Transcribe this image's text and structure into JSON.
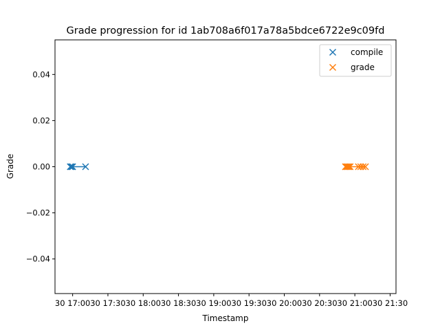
{
  "chart_data": {
    "type": "scatter",
    "title": "Grade progression for id 1ab708a6f017a78a5bdce6722e9c09fd",
    "xlabel": "Timestamp",
    "ylabel": "Grade",
    "xlim": [
      "30 16:45",
      "30 21:35"
    ],
    "ylim": [
      -0.055,
      0.055
    ],
    "x_ticks": [
      "30 17:00",
      "30 17:30",
      "30 18:00",
      "30 18:30",
      "30 19:00",
      "30 19:30",
      "30 20:00",
      "30 20:30",
      "30 21:00",
      "30 21:30"
    ],
    "y_ticks": [
      "0.04",
      "0.02",
      "0.00",
      "−0.02",
      "−0.04"
    ],
    "legend_position": "top-right",
    "grid": false,
    "series": [
      {
        "name": "compile",
        "color": "#1f77b4",
        "marker": "x",
        "connected": true,
        "points": [
          {
            "x": "30 16:58",
            "y": 0.0
          },
          {
            "x": "30 16:59",
            "y": 0.0
          },
          {
            "x": "30 17:00",
            "y": 0.0
          },
          {
            "x": "30 17:11",
            "y": 0.0
          }
        ]
      },
      {
        "name": "grade",
        "color": "#ff7f0e",
        "marker": "x",
        "connected": true,
        "points": [
          {
            "x": "30 20:52",
            "y": 0.0
          },
          {
            "x": "30 20:53",
            "y": 0.0
          },
          {
            "x": "30 20:54",
            "y": 0.0
          },
          {
            "x": "30 20:55",
            "y": 0.0
          },
          {
            "x": "30 20:56",
            "y": 0.0
          },
          {
            "x": "30 21:03",
            "y": 0.0
          },
          {
            "x": "30 21:05",
            "y": 0.0
          },
          {
            "x": "30 21:07",
            "y": 0.0
          },
          {
            "x": "30 21:09",
            "y": 0.0
          }
        ]
      }
    ]
  }
}
